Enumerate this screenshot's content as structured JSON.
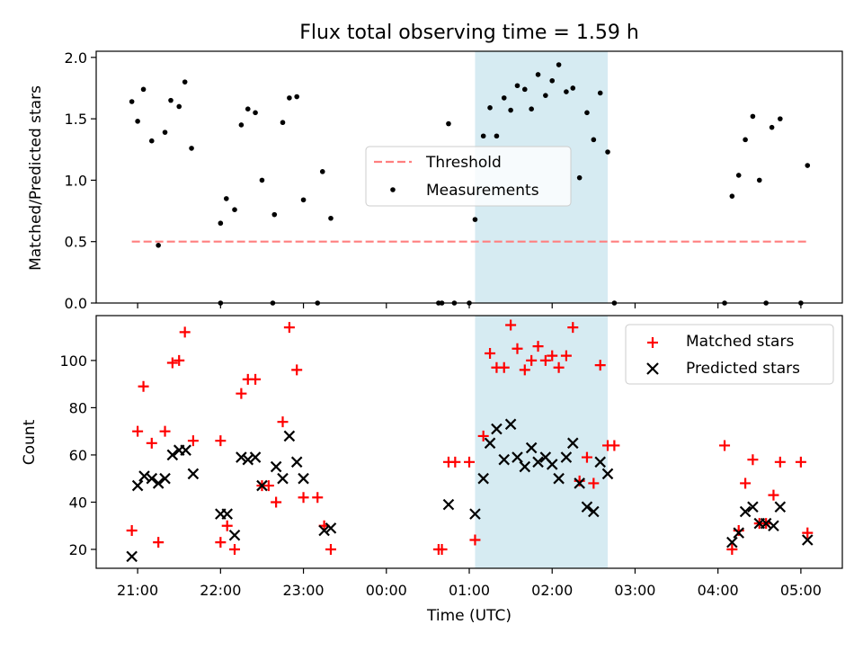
{
  "chart_data": {
    "type": "scatter",
    "title": "Flux total observing time = 1.59 h",
    "xlabel": "Time (UTC)",
    "x_tick_labels": [
      "21:00",
      "22:00",
      "23:00",
      "00:00",
      "01:00",
      "02:00",
      "03:00",
      "04:00",
      "05:00"
    ],
    "x_tick_hours": [
      21,
      22,
      23,
      24,
      25,
      26,
      27,
      28,
      29
    ],
    "xlim_hours": [
      20.5,
      29.5
    ],
    "highlight_span_hours": [
      25.07,
      26.67
    ],
    "colors": {
      "highlight": "#add8e6",
      "threshold": "#ff7f7f",
      "matched": "#ff0000",
      "predicted": "#000000",
      "measurement": "#000000"
    },
    "top_panel": {
      "ylabel": "Matched/Predicted stars",
      "ylim": [
        0,
        2.05
      ],
      "y_ticks": [
        0.0,
        0.5,
        1.0,
        1.5,
        2.0
      ],
      "y_tick_labels": [
        "0.0",
        "0.5",
        "1.0",
        "1.5",
        "2.0"
      ],
      "threshold": {
        "name": "Threshold",
        "value": 0.5,
        "x_range": [
          20.93,
          29.1
        ]
      },
      "measurements": {
        "name": "Measurements",
        "points": [
          [
            20.93,
            1.64
          ],
          [
            21.0,
            1.48
          ],
          [
            21.07,
            1.74
          ],
          [
            21.17,
            1.32
          ],
          [
            21.25,
            0.47
          ],
          [
            21.33,
            1.39
          ],
          [
            21.4,
            1.65
          ],
          [
            21.5,
            1.6
          ],
          [
            21.57,
            1.8
          ],
          [
            21.65,
            1.26
          ],
          [
            22.0,
            0.65
          ],
          [
            22.07,
            0.85
          ],
          [
            22.17,
            0.76
          ],
          [
            22.25,
            1.45
          ],
          [
            22.33,
            1.58
          ],
          [
            22.42,
            1.55
          ],
          [
            22.5,
            1.0
          ],
          [
            22.65,
            0.72
          ],
          [
            22.75,
            1.47
          ],
          [
            22.83,
            1.67
          ],
          [
            22.92,
            1.68
          ],
          [
            23.0,
            0.84
          ],
          [
            23.23,
            1.07
          ],
          [
            23.33,
            0.69
          ],
          [
            25.07,
            0.68
          ],
          [
            25.17,
            1.36
          ],
          [
            25.25,
            1.59
          ],
          [
            25.33,
            1.36
          ],
          [
            25.42,
            1.67
          ],
          [
            25.5,
            1.57
          ],
          [
            25.58,
            1.77
          ],
          [
            25.67,
            1.74
          ],
          [
            25.75,
            1.58
          ],
          [
            25.83,
            1.86
          ],
          [
            25.92,
            1.69
          ],
          [
            26.0,
            1.81
          ],
          [
            26.08,
            1.94
          ],
          [
            26.17,
            1.72
          ],
          [
            26.25,
            1.75
          ],
          [
            26.33,
            1.02
          ],
          [
            26.42,
            1.55
          ],
          [
            26.5,
            1.33
          ],
          [
            26.58,
            1.71
          ],
          [
            26.67,
            1.23
          ],
          [
            24.75,
            1.46
          ],
          [
            28.17,
            0.87
          ],
          [
            28.25,
            1.04
          ],
          [
            28.33,
            1.33
          ],
          [
            28.42,
            1.52
          ],
          [
            28.5,
            1.0
          ],
          [
            28.65,
            1.43
          ],
          [
            28.75,
            1.5
          ],
          [
            29.08,
            1.12
          ],
          [
            22.0,
            0.0
          ],
          [
            22.63,
            0.0
          ],
          [
            23.17,
            0.0
          ],
          [
            24.63,
            0.0
          ],
          [
            24.67,
            0.0
          ],
          [
            24.82,
            0.0
          ],
          [
            25.0,
            0.0
          ],
          [
            26.75,
            0.0
          ],
          [
            28.08,
            0.0
          ],
          [
            28.58,
            0.0
          ],
          [
            29.0,
            0.0
          ]
        ]
      }
    },
    "bottom_panel": {
      "ylabel": "Count",
      "ylim": [
        12,
        119
      ],
      "y_ticks": [
        20,
        40,
        60,
        80,
        100
      ],
      "y_tick_labels": [
        "20",
        "40",
        "60",
        "80",
        "100"
      ],
      "matched": {
        "name": "Matched stars",
        "points": [
          [
            20.93,
            28
          ],
          [
            21.0,
            70
          ],
          [
            21.07,
            89
          ],
          [
            21.17,
            65
          ],
          [
            21.25,
            23
          ],
          [
            21.33,
            70
          ],
          [
            21.42,
            99
          ],
          [
            21.5,
            100
          ],
          [
            21.57,
            112
          ],
          [
            21.67,
            66
          ],
          [
            22.0,
            23
          ],
          [
            22.0,
            66
          ],
          [
            22.08,
            30
          ],
          [
            22.17,
            20
          ],
          [
            22.25,
            86
          ],
          [
            22.33,
            92
          ],
          [
            22.42,
            92
          ],
          [
            22.5,
            47
          ],
          [
            22.58,
            47
          ],
          [
            22.67,
            40
          ],
          [
            22.75,
            74
          ],
          [
            22.83,
            114
          ],
          [
            22.92,
            96
          ],
          [
            23.0,
            42
          ],
          [
            23.17,
            42
          ],
          [
            23.25,
            30
          ],
          [
            23.33,
            20
          ],
          [
            24.63,
            20
          ],
          [
            24.67,
            20
          ],
          [
            24.75,
            57
          ],
          [
            24.83,
            57
          ],
          [
            25.0,
            57
          ],
          [
            25.07,
            24
          ],
          [
            25.17,
            68
          ],
          [
            25.25,
            103
          ],
          [
            25.33,
            97
          ],
          [
            25.42,
            97
          ],
          [
            25.5,
            115
          ],
          [
            25.58,
            105
          ],
          [
            25.67,
            96
          ],
          [
            25.75,
            100
          ],
          [
            25.83,
            106
          ],
          [
            25.92,
            100
          ],
          [
            26.0,
            102
          ],
          [
            26.08,
            97
          ],
          [
            26.17,
            102
          ],
          [
            26.25,
            114
          ],
          [
            26.33,
            49
          ],
          [
            26.42,
            59
          ],
          [
            26.5,
            48
          ],
          [
            26.58,
            98
          ],
          [
            26.67,
            64
          ],
          [
            26.75,
            64
          ],
          [
            28.08,
            64
          ],
          [
            28.17,
            20
          ],
          [
            28.25,
            28
          ],
          [
            28.33,
            48
          ],
          [
            28.42,
            58
          ],
          [
            28.5,
            31
          ],
          [
            28.58,
            31
          ],
          [
            28.67,
            43
          ],
          [
            28.75,
            57
          ],
          [
            29.0,
            57
          ],
          [
            29.08,
            27
          ]
        ]
      },
      "predicted": {
        "name": "Predicted stars",
        "points": [
          [
            20.93,
            17
          ],
          [
            21.0,
            47
          ],
          [
            21.08,
            51
          ],
          [
            21.17,
            50
          ],
          [
            21.25,
            48
          ],
          [
            21.33,
            50
          ],
          [
            21.42,
            60
          ],
          [
            21.5,
            62
          ],
          [
            21.58,
            62
          ],
          [
            21.67,
            52
          ],
          [
            22.0,
            35
          ],
          [
            22.08,
            35
          ],
          [
            22.17,
            26
          ],
          [
            22.25,
            59
          ],
          [
            22.33,
            58
          ],
          [
            22.42,
            59
          ],
          [
            22.5,
            47
          ],
          [
            22.67,
            55
          ],
          [
            22.75,
            50
          ],
          [
            22.83,
            68
          ],
          [
            22.92,
            57
          ],
          [
            23.0,
            50
          ],
          [
            23.25,
            28
          ],
          [
            23.33,
            29
          ],
          [
            24.75,
            39
          ],
          [
            25.07,
            35
          ],
          [
            25.17,
            50
          ],
          [
            25.25,
            65
          ],
          [
            25.33,
            71
          ],
          [
            25.42,
            58
          ],
          [
            25.5,
            73
          ],
          [
            25.58,
            59
          ],
          [
            25.67,
            55
          ],
          [
            25.75,
            63
          ],
          [
            25.83,
            57
          ],
          [
            25.92,
            59
          ],
          [
            26.0,
            56
          ],
          [
            26.08,
            50
          ],
          [
            26.17,
            59
          ],
          [
            26.25,
            65
          ],
          [
            26.33,
            48
          ],
          [
            26.42,
            38
          ],
          [
            26.5,
            36
          ],
          [
            26.58,
            57
          ],
          [
            26.67,
            52
          ],
          [
            28.17,
            23
          ],
          [
            28.25,
            27
          ],
          [
            28.33,
            36
          ],
          [
            28.42,
            38
          ],
          [
            28.5,
            31
          ],
          [
            28.58,
            31
          ],
          [
            28.67,
            30
          ],
          [
            28.75,
            38
          ],
          [
            29.08,
            24
          ]
        ]
      }
    }
  }
}
